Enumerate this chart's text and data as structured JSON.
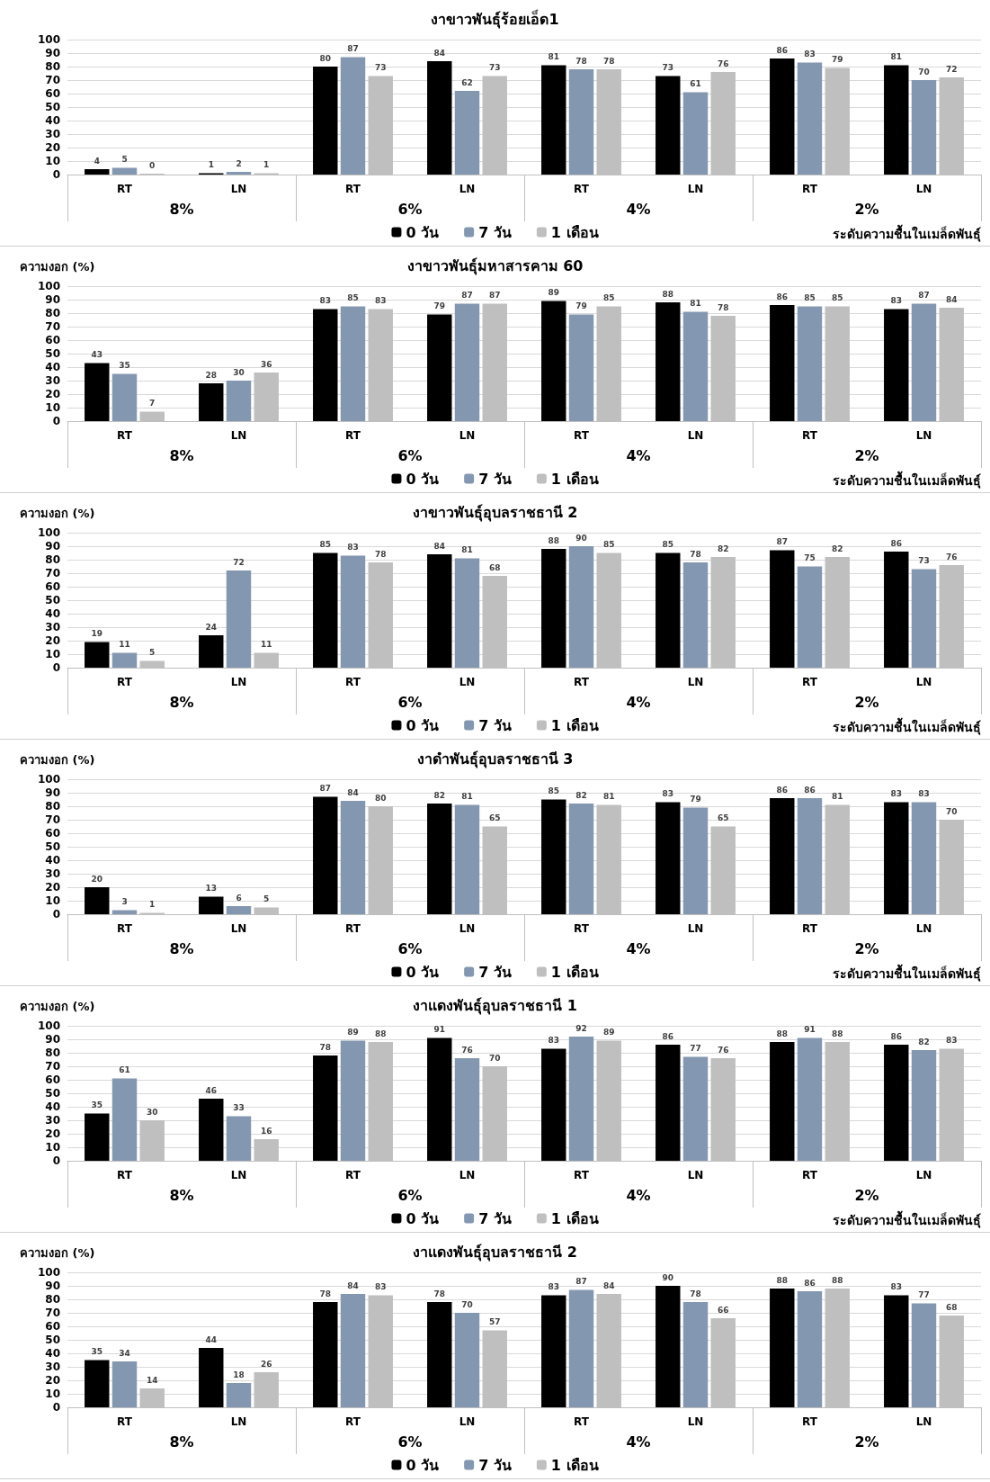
{
  "chart_data": [
    {
      "type": "bar",
      "title": "งาขาวพันธุ์ร้อยเอ็ด1",
      "xlabel": "ระดับความชื้นในเมล็ดพันธุ์",
      "categories": [
        "RT",
        "LN",
        "RT",
        "LN",
        "RT",
        "LN",
        "RT",
        "LN"
      ],
      "annotations": [
        "8%",
        "6%",
        "4%",
        "2%"
      ],
      "ylim": [
        0,
        100
      ],
      "yticks": [
        0,
        10,
        20,
        30,
        40,
        50,
        60,
        70,
        80,
        90,
        100
      ],
      "grid": "y",
      "legend": "bottom",
      "data_labels": true,
      "series": [
        {
          "name": "0 วัน",
          "color": "#000000",
          "values": [
            4,
            1,
            80,
            84,
            81,
            73,
            86,
            81
          ]
        },
        {
          "name": "7 วัน",
          "color": "#8497b0",
          "values": [
            5,
            2,
            87,
            62,
            78,
            61,
            83,
            70
          ]
        },
        {
          "name": "1 เดือน",
          "color": "#bfbfbf",
          "values": [
            0,
            1,
            73,
            73,
            78,
            76,
            79,
            72
          ]
        }
      ]
    },
    {
      "type": "bar",
      "title": "งาขาวพันธุ์มหาสารคาม 60",
      "ylabel": "ความงอก (%)",
      "xlabel": "ระดับความชื้นในเมล็ดพันธุ์",
      "categories": [
        "RT",
        "LN",
        "RT",
        "LN",
        "RT",
        "LN",
        "RT",
        "LN"
      ],
      "annotations": [
        "8%",
        "6%",
        "4%",
        "2%"
      ],
      "ylim": [
        0,
        100
      ],
      "yticks": [
        0,
        10,
        20,
        30,
        40,
        50,
        60,
        70,
        80,
        90,
        100
      ],
      "grid": "y",
      "legend": "bottom",
      "data_labels": true,
      "series": [
        {
          "name": "0 วัน",
          "color": "#000000",
          "values": [
            43,
            28,
            83,
            79,
            89,
            88,
            86,
            83
          ]
        },
        {
          "name": "7 วัน",
          "color": "#8497b0",
          "values": [
            35,
            30,
            85,
            87,
            79,
            81,
            85,
            87
          ]
        },
        {
          "name": "1 เดือน",
          "color": "#bfbfbf",
          "values": [
            7,
            36,
            83,
            87,
            85,
            78,
            85,
            84
          ]
        }
      ]
    },
    {
      "type": "bar",
      "title": "งาขาวพันธุ์อุบลราชธานี 2",
      "ylabel": "ความงอก (%)",
      "xlabel": "ระดับความชื้นในเมล็ดพันธุ์",
      "categories": [
        "RT",
        "LN",
        "RT",
        "LN",
        "RT",
        "LN",
        "RT",
        "LN"
      ],
      "annotations": [
        "8%",
        "6%",
        "4%",
        "2%"
      ],
      "ylim": [
        0,
        100
      ],
      "yticks": [
        0,
        10,
        20,
        30,
        40,
        50,
        60,
        70,
        80,
        90,
        100
      ],
      "grid": "y",
      "legend": "bottom",
      "data_labels": true,
      "series": [
        {
          "name": "0 วัน",
          "color": "#000000",
          "values": [
            19,
            24,
            85,
            84,
            88,
            85,
            87,
            86
          ]
        },
        {
          "name": "7 วัน",
          "color": "#8497b0",
          "values": [
            11,
            72,
            83,
            81,
            90,
            78,
            75,
            73
          ]
        },
        {
          "name": "1 เดือน",
          "color": "#bfbfbf",
          "values": [
            5,
            11,
            78,
            68,
            85,
            82,
            82,
            76
          ]
        }
      ]
    },
    {
      "type": "bar",
      "title": "งาดำพันธุ์อุบลราชธานี 3",
      "ylabel": "ความงอก (%)",
      "xlabel": "ระดับความชื้นในเมล็ดพันธุ์",
      "categories": [
        "RT",
        "LN",
        "RT",
        "LN",
        "RT",
        "LN",
        "RT",
        "LN"
      ],
      "annotations": [
        "8%",
        "6%",
        "4%",
        "2%"
      ],
      "ylim": [
        0,
        100
      ],
      "yticks": [
        0,
        10,
        20,
        30,
        40,
        50,
        60,
        70,
        80,
        90,
        100
      ],
      "grid": "y",
      "legend": "bottom",
      "data_labels": true,
      "series": [
        {
          "name": "0 วัน",
          "color": "#000000",
          "values": [
            20,
            13,
            87,
            82,
            85,
            83,
            86,
            83
          ]
        },
        {
          "name": "7 วัน",
          "color": "#8497b0",
          "values": [
            3,
            6,
            84,
            81,
            82,
            79,
            86,
            83
          ]
        },
        {
          "name": "1 เดือน",
          "color": "#bfbfbf",
          "values": [
            1,
            5,
            80,
            65,
            81,
            65,
            81,
            70
          ]
        }
      ]
    },
    {
      "type": "bar",
      "title": "งาแดงพันธุ์อุบลราชธานี 1",
      "ylabel": "ความงอก (%)",
      "xlabel": "ระดับความชื้นในเมล็ดพันธุ์",
      "categories": [
        "RT",
        "LN",
        "RT",
        "LN",
        "RT",
        "LN",
        "RT",
        "LN"
      ],
      "annotations": [
        "8%",
        "6%",
        "4%",
        "2%"
      ],
      "ylim": [
        0,
        100
      ],
      "yticks": [
        0,
        10,
        20,
        30,
        40,
        50,
        60,
        70,
        80,
        90,
        100
      ],
      "grid": "y",
      "legend": "bottom",
      "data_labels": true,
      "series": [
        {
          "name": "0 วัน",
          "color": "#000000",
          "values": [
            35,
            46,
            78,
            91,
            83,
            86,
            88,
            86
          ]
        },
        {
          "name": "7 วัน",
          "color": "#8497b0",
          "values": [
            61,
            33,
            89,
            76,
            92,
            77,
            91,
            82
          ]
        },
        {
          "name": "1 เดือน",
          "color": "#bfbfbf",
          "values": [
            30,
            16,
            88,
            70,
            89,
            76,
            88,
            83
          ]
        }
      ]
    },
    {
      "type": "bar",
      "title": "งาแดงพันธุ์อุบลราชธานี 2",
      "ylabel": "ความงอก (%)",
      "categories": [
        "RT",
        "LN",
        "RT",
        "LN",
        "RT",
        "LN",
        "RT",
        "LN"
      ],
      "annotations": [
        "8%",
        "6%",
        "4%",
        "2%"
      ],
      "ylim": [
        0,
        100
      ],
      "yticks": [
        0,
        10,
        20,
        30,
        40,
        50,
        60,
        70,
        80,
        90,
        100
      ],
      "grid": "y",
      "legend": "bottom",
      "data_labels": true,
      "series": [
        {
          "name": "0 วัน",
          "color": "#000000",
          "values": [
            35,
            44,
            78,
            78,
            83,
            90,
            88,
            83
          ]
        },
        {
          "name": "7 วัน",
          "color": "#8497b0",
          "values": [
            34,
            18,
            84,
            70,
            87,
            78,
            86,
            77
          ]
        },
        {
          "name": "1 เดือน",
          "color": "#bfbfbf",
          "values": [
            14,
            26,
            83,
            57,
            84,
            66,
            88,
            68
          ]
        }
      ]
    }
  ]
}
